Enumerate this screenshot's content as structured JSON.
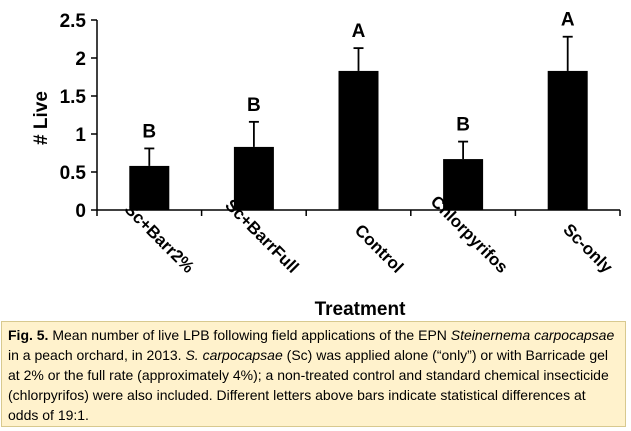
{
  "chart_data": {
    "type": "bar",
    "categories": [
      "Sc+Barr2%",
      "Sc+BarrFull",
      "Control",
      "Chlorpyrifos",
      "Sc-only"
    ],
    "values": [
      0.58,
      0.83,
      1.83,
      0.67,
      1.83
    ],
    "error_upper": [
      0.81,
      1.16,
      2.13,
      0.9,
      2.28
    ],
    "significance_letters": [
      "B",
      "B",
      "A",
      "B",
      "A"
    ],
    "xlabel": "Treatment",
    "ylabel": "# Live",
    "ylim": [
      0,
      2.5
    ],
    "yticks": [
      0,
      0.5,
      1,
      1.5,
      2,
      2.5
    ],
    "ytick_labels": [
      "0",
      "0.5",
      "1",
      "1.5",
      "2",
      "2.5"
    ],
    "grid": false,
    "bar_color": "#000000"
  },
  "caption": {
    "label": "Fig. 5.",
    "part1": " Mean number of live LPB following field applications of the EPN ",
    "species": "Steinernema carpocapsae",
    "part2": " in a peach orchard, in 2013. ",
    "species_short": "S. carpocapsae",
    "part3": " (Sc) was applied alone (“only”) or with Barricade gel at 2% or the full rate (approximately 4%); a non-treated control and standard chemical insecticide (chlorpyrifos) were also included. Different letters above bars indicate statistical differences at odds of 19:1.",
    "background": "#FFF2CC"
  }
}
